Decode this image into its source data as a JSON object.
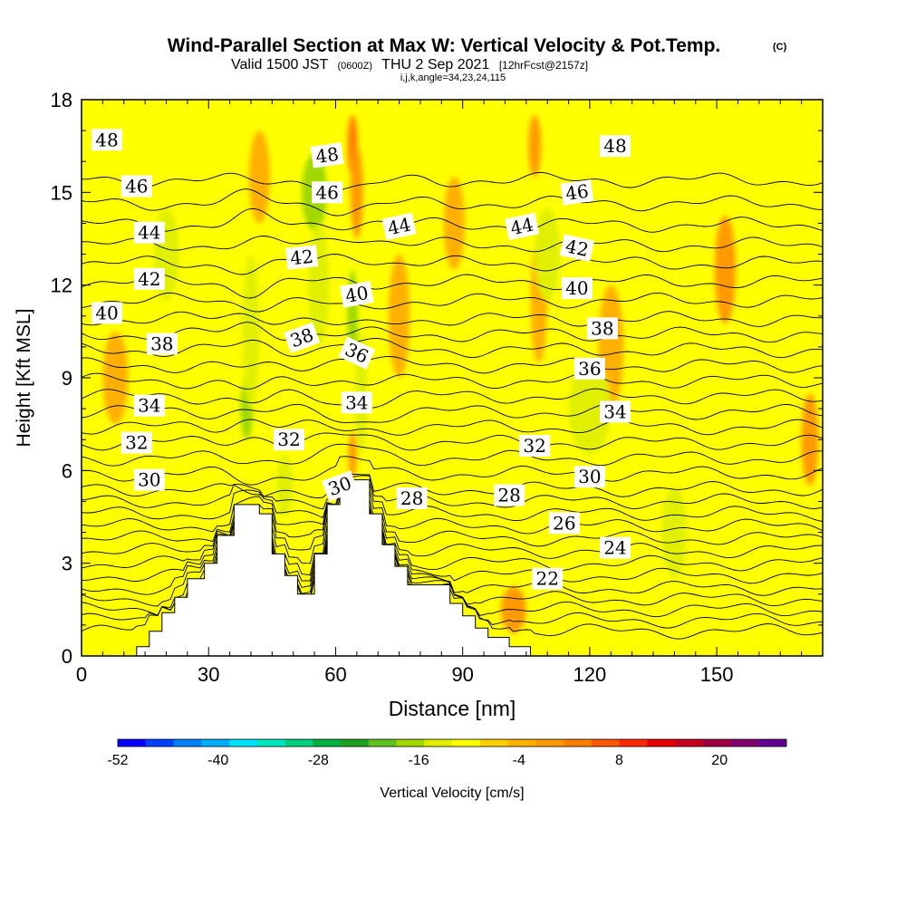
{
  "header": {
    "title": "Wind-Parallel Section at Max W: Vertical Velocity & Pot.Temp.",
    "copyright": "(C)",
    "valid_prefix": "Valid 1500 JST",
    "valid_utc": "(0600Z)",
    "valid_date": "THU 2 Sep 2021",
    "forecast_info": "[12hrFcst@2157z]",
    "ijk_angle": "i,j,k,angle=34,23,24,115"
  },
  "chart_data": {
    "type": "heatmap",
    "xlabel": "Distance [nm]",
    "ylabel": "Height [Kft MSL]",
    "xlim": [
      0,
      175
    ],
    "ylim": [
      0,
      18
    ],
    "x_ticks": [
      0,
      30,
      60,
      90,
      120,
      150
    ],
    "y_ticks": [
      0,
      3,
      6,
      9,
      12,
      15,
      18
    ],
    "background_velocity_cms": -2,
    "velocity_features": [
      {
        "x": 42,
        "y": 15.5,
        "w": 5,
        "h": 3,
        "value": 4
      },
      {
        "x": 39,
        "y": 8.0,
        "w": 3,
        "h": 2,
        "value": -10
      },
      {
        "x": 40,
        "y": 10.5,
        "w": 4,
        "h": 5,
        "value": -6
      },
      {
        "x": 55,
        "y": 15.0,
        "w": 6,
        "h": 2.5,
        "value": -10
      },
      {
        "x": 56,
        "y": 12.0,
        "w": 5,
        "h": 4,
        "value": -6
      },
      {
        "x": 64,
        "y": 16.5,
        "w": 2.5,
        "h": 2,
        "value": 12
      },
      {
        "x": 65,
        "y": 15.0,
        "w": 3,
        "h": 3,
        "value": 8
      },
      {
        "x": 64,
        "y": 11.0,
        "w": 2.5,
        "h": 3,
        "value": -12
      },
      {
        "x": 66,
        "y": 8.5,
        "w": 3,
        "h": 4,
        "value": -8
      },
      {
        "x": 64,
        "y": 6.5,
        "w": 2,
        "h": 1.5,
        "value": 10
      },
      {
        "x": 108,
        "y": 10.5,
        "w": 3,
        "h": 2,
        "value": 14
      },
      {
        "x": 108,
        "y": 11.5,
        "w": 4,
        "h": 4,
        "value": 6
      },
      {
        "x": 107,
        "y": 16.5,
        "w": 3,
        "h": 2,
        "value": 8
      },
      {
        "x": 110,
        "y": 13.0,
        "w": 6,
        "h": 3,
        "value": -6
      },
      {
        "x": 152,
        "y": 12.5,
        "w": 5,
        "h": 3.5,
        "value": 8
      },
      {
        "x": 125,
        "y": 10.0,
        "w": 6,
        "h": 4,
        "value": 4
      },
      {
        "x": 140,
        "y": 4.0,
        "w": 6,
        "h": 3,
        "value": -6
      },
      {
        "x": 172,
        "y": 7.0,
        "w": 4,
        "h": 3,
        "value": 10
      },
      {
        "x": 102,
        "y": 1.5,
        "w": 6,
        "h": 1.5,
        "value": 8
      },
      {
        "x": 48,
        "y": 5.5,
        "w": 4,
        "h": 2,
        "value": -8
      },
      {
        "x": 120,
        "y": 8.0,
        "w": 10,
        "h": 3,
        "value": -6
      },
      {
        "x": 20,
        "y": 13.0,
        "w": 6,
        "h": 3,
        "value": -6
      },
      {
        "x": 8,
        "y": 9.0,
        "w": 6,
        "h": 3,
        "value": 4
      },
      {
        "x": 75,
        "y": 11.0,
        "w": 5,
        "h": 4,
        "value": 4
      },
      {
        "x": 88,
        "y": 14.0,
        "w": 5,
        "h": 3,
        "value": 4
      }
    ],
    "terrain": [
      [
        13,
        0
      ],
      [
        13,
        0.3
      ],
      [
        16,
        0.3
      ],
      [
        16,
        0.8
      ],
      [
        19,
        0.8
      ],
      [
        19,
        1.4
      ],
      [
        22,
        1.4
      ],
      [
        22,
        1.9
      ],
      [
        25,
        1.9
      ],
      [
        25,
        2.5
      ],
      [
        29,
        2.5
      ],
      [
        29,
        3.0
      ],
      [
        32,
        3.0
      ],
      [
        32,
        3.9
      ],
      [
        36,
        3.9
      ],
      [
        36,
        4.9
      ],
      [
        42,
        4.9
      ],
      [
        42,
        4.6
      ],
      [
        45,
        4.6
      ],
      [
        45,
        3.3
      ],
      [
        48,
        3.3
      ],
      [
        48,
        2.6
      ],
      [
        51,
        2.6
      ],
      [
        51,
        2.0
      ],
      [
        55,
        2.0
      ],
      [
        55,
        3.3
      ],
      [
        58,
        3.3
      ],
      [
        58,
        4.9
      ],
      [
        61,
        4.9
      ],
      [
        61,
        5.7
      ],
      [
        68,
        5.7
      ],
      [
        68,
        4.6
      ],
      [
        71,
        4.6
      ],
      [
        71,
        3.6
      ],
      [
        74,
        3.6
      ],
      [
        74,
        2.9
      ],
      [
        77,
        2.9
      ],
      [
        77,
        2.3
      ],
      [
        87,
        2.3
      ],
      [
        87,
        1.7
      ],
      [
        90,
        1.7
      ],
      [
        90,
        1.3
      ],
      [
        93,
        1.3
      ],
      [
        93,
        0.9
      ],
      [
        96,
        0.9
      ],
      [
        96,
        0.6
      ],
      [
        101,
        0.6
      ],
      [
        101,
        0.3
      ],
      [
        106,
        0.3
      ],
      [
        106,
        0
      ]
    ],
    "theta_contours": {
      "levels_start": 22,
      "levels_end": 48,
      "base_height_left": [
        0.8,
        1.15,
        1.5,
        1.85,
        2.2,
        2.6,
        3.0,
        3.4,
        3.8,
        4.2,
        4.6,
        5.0,
        5.4,
        5.9,
        6.4,
        6.9,
        7.4,
        7.9,
        8.4,
        8.9,
        9.4,
        9.9,
        10.4,
        10.9,
        11.5,
        12.1,
        12.7
      ],
      "extra_lines_above_48": 4
    },
    "contour_labels": [
      {
        "text": "48",
        "x": 6,
        "y": 16.7,
        "angle": 0
      },
      {
        "text": "46",
        "x": 13,
        "y": 15.2,
        "angle": 0
      },
      {
        "text": "44",
        "x": 16,
        "y": 13.7,
        "angle": 0
      },
      {
        "text": "42",
        "x": 16,
        "y": 12.2,
        "angle": 0
      },
      {
        "text": "40",
        "x": 6,
        "y": 11.1,
        "angle": 0
      },
      {
        "text": "38",
        "x": 19,
        "y": 10.1,
        "angle": 0
      },
      {
        "text": "34",
        "x": 16,
        "y": 8.1,
        "angle": 0
      },
      {
        "text": "32",
        "x": 13,
        "y": 6.9,
        "angle": 0
      },
      {
        "text": "30",
        "x": 16,
        "y": 5.7,
        "angle": 0
      },
      {
        "text": "48",
        "x": 58,
        "y": 16.2,
        "angle": -8
      },
      {
        "text": "46",
        "x": 58,
        "y": 15.0,
        "angle": 0
      },
      {
        "text": "42",
        "x": 52,
        "y": 12.9,
        "angle": -6
      },
      {
        "text": "40",
        "x": 65,
        "y": 11.7,
        "angle": -10
      },
      {
        "text": "38",
        "x": 52,
        "y": 10.3,
        "angle": -20
      },
      {
        "text": "36",
        "x": 65,
        "y": 9.8,
        "angle": 25
      },
      {
        "text": "34",
        "x": 65,
        "y": 8.2,
        "angle": 0
      },
      {
        "text": "32",
        "x": 49,
        "y": 7.0,
        "angle": 0
      },
      {
        "text": "30",
        "x": 61,
        "y": 5.5,
        "angle": -20
      },
      {
        "text": "44",
        "x": 75,
        "y": 13.9,
        "angle": -12
      },
      {
        "text": "44",
        "x": 104,
        "y": 13.9,
        "angle": -12
      },
      {
        "text": "28",
        "x": 78,
        "y": 5.1,
        "angle": 0
      },
      {
        "text": "28",
        "x": 101,
        "y": 5.2,
        "angle": 0
      },
      {
        "text": "32",
        "x": 107,
        "y": 6.8,
        "angle": 0
      },
      {
        "text": "48",
        "x": 126,
        "y": 16.5,
        "angle": 0
      },
      {
        "text": "46",
        "x": 117,
        "y": 15.0,
        "angle": -8
      },
      {
        "text": "42",
        "x": 117,
        "y": 13.2,
        "angle": 12
      },
      {
        "text": "40",
        "x": 117,
        "y": 11.9,
        "angle": 0
      },
      {
        "text": "38",
        "x": 123,
        "y": 10.6,
        "angle": 0
      },
      {
        "text": "36",
        "x": 120,
        "y": 9.3,
        "angle": 0
      },
      {
        "text": "34",
        "x": 126,
        "y": 7.9,
        "angle": 0
      },
      {
        "text": "30",
        "x": 120,
        "y": 5.8,
        "angle": 0
      },
      {
        "text": "26",
        "x": 114,
        "y": 4.3,
        "angle": 0
      },
      {
        "text": "24",
        "x": 126,
        "y": 3.5,
        "angle": 0
      },
      {
        "text": "22",
        "x": 110,
        "y": 2.5,
        "angle": 0
      }
    ],
    "colorbar": {
      "label": "Vertical Velocity [cm/s]",
      "min": -52,
      "max": 28,
      "step": 4,
      "tick_labels": [
        "-52",
        "-40",
        "-28",
        "-16",
        "-4",
        "8",
        "20"
      ],
      "tick_values": [
        -52,
        -40,
        -28,
        -16,
        -4,
        8,
        20
      ],
      "colors": [
        "#0000ff",
        "#0040ff",
        "#0080ff",
        "#00b0ff",
        "#00e0ff",
        "#00e8c0",
        "#00d080",
        "#00b040",
        "#20a020",
        "#60c020",
        "#a0d800",
        "#e0f000",
        "#ffff00",
        "#ffd000",
        "#ffb000",
        "#ff9a00",
        "#ff8000",
        "#ff5800",
        "#ff2800",
        "#e80000",
        "#c80020",
        "#a00040",
        "#800070",
        "#600090"
      ]
    }
  }
}
